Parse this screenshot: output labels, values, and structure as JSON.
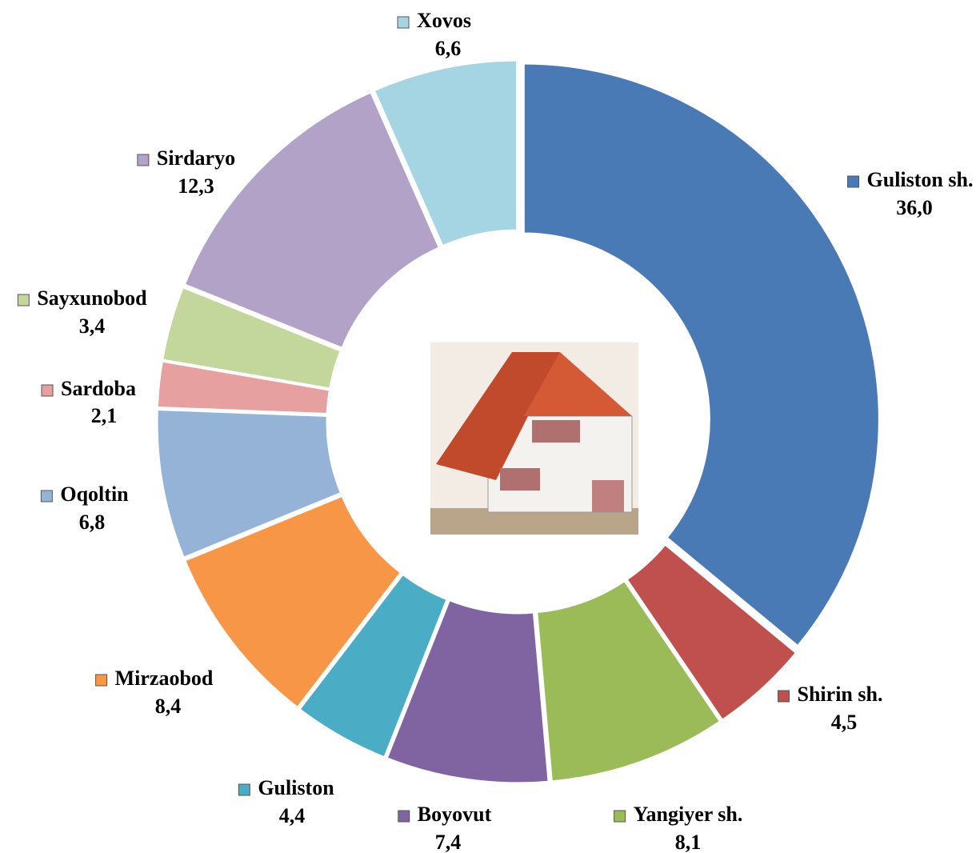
{
  "chart_data": {
    "type": "donut",
    "categories": [
      "Guliston sh.",
      "Shirin sh.",
      "Yangiyer sh.",
      "Boyovut",
      "Guliston",
      "Mirzaobod",
      "Oqoltin",
      "Sardoba",
      "Sayxunobod",
      "Sirdaryo",
      "Xovos"
    ],
    "values": [
      36.0,
      4.5,
      8.1,
      7.4,
      4.4,
      8.4,
      6.8,
      2.1,
      3.4,
      12.3,
      6.6
    ],
    "value_labels": [
      "36,0",
      "4,5",
      "8,1",
      "7,4",
      "4,4",
      "8,4",
      "6,8",
      "2,1",
      "3,4",
      "12,3",
      "6,6"
    ],
    "colors": [
      "#4a7ab5",
      "#c0504d",
      "#9bbb59",
      "#8064a2",
      "#4bacc6",
      "#f79646",
      "#95b3d7",
      "#e6a0a0",
      "#c3d69b",
      "#b3a2c7",
      "#a5d5e2"
    ]
  }
}
